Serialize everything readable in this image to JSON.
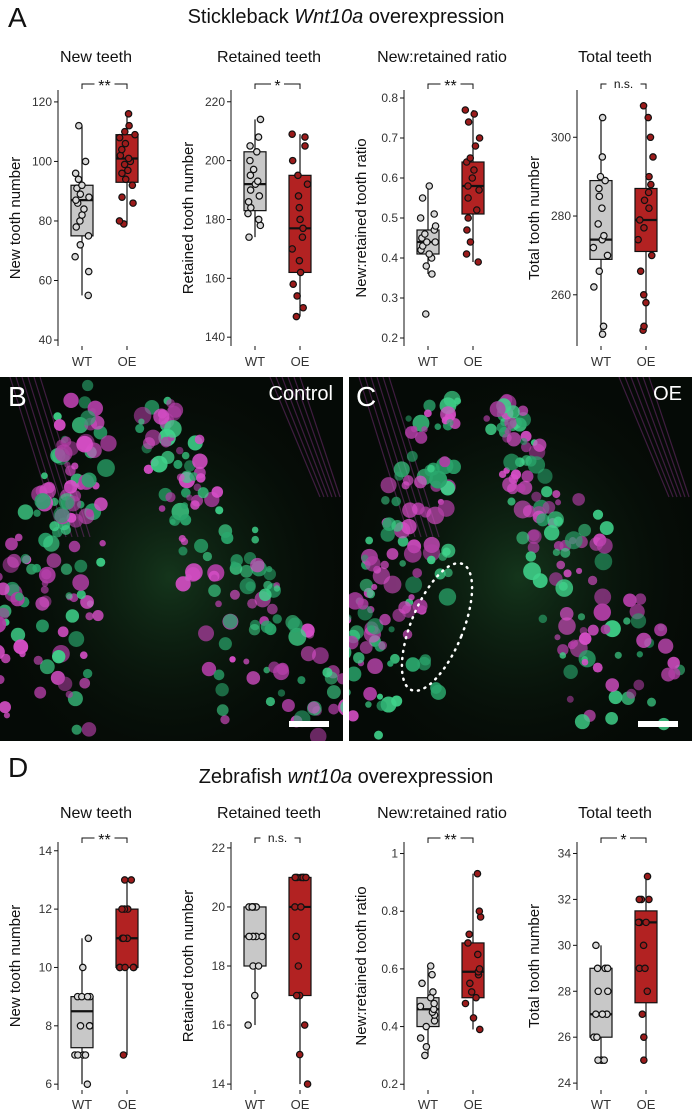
{
  "panel_A": {
    "letter": "A",
    "title_prefix": "Stickleback ",
    "title_italic": "Wnt10a",
    "title_suffix": " overexpression"
  },
  "panel_B": {
    "letter": "B",
    "label": "Control"
  },
  "panel_C": {
    "letter": "C",
    "label": "OE"
  },
  "panel_D": {
    "letter": "D",
    "title_prefix": "Zebrafish ",
    "title_italic": "wnt10a",
    "title_suffix": " overexpression"
  },
  "colors": {
    "wt_fill": "#c8c8c8",
    "oe_fill": "#b22222",
    "wt_point": "#d9d9d9",
    "oe_point": "#9b1b1b"
  },
  "chart_data": [
    {
      "id": "A1",
      "type": "box",
      "title": "New teeth",
      "ylabel": "New tooth number",
      "categories": [
        "WT",
        "OE"
      ],
      "ylim": [
        38,
        124
      ],
      "yticks": [
        40,
        60,
        80,
        100,
        120
      ],
      "signif": "**",
      "boxes": [
        {
          "q1": 75,
          "median": 87,
          "q3": 92,
          "min": 55,
          "max": 112
        },
        {
          "q1": 93,
          "median": 101,
          "q3": 109,
          "min": 79,
          "max": 116
        }
      ],
      "points": [
        [
          55,
          63,
          68,
          72,
          75,
          78,
          80,
          82,
          84,
          86,
          87,
          88,
          89,
          91,
          92,
          94,
          96,
          100,
          112
        ],
        [
          79,
          80,
          86,
          88,
          92,
          94,
          96,
          97,
          99,
          100,
          101,
          102,
          104,
          106,
          108,
          109,
          110,
          112,
          116
        ]
      ]
    },
    {
      "id": "A2",
      "type": "box",
      "title": "Retained teeth",
      "ylabel": "Retained tooth number",
      "categories": [
        "WT",
        "OE"
      ],
      "ylim": [
        137,
        224
      ],
      "yticks": [
        140,
        160,
        180,
        200,
        220
      ],
      "signif": "*",
      "boxes": [
        {
          "q1": 183,
          "median": 192,
          "q3": 203,
          "min": 174,
          "max": 214
        },
        {
          "q1": 162,
          "median": 177,
          "q3": 195,
          "min": 147,
          "max": 209
        }
      ],
      "points": [
        [
          174,
          178,
          180,
          182,
          184,
          186,
          188,
          190,
          192,
          193,
          195,
          197,
          200,
          203,
          205,
          208,
          214
        ],
        [
          147,
          150,
          154,
          158,
          162,
          166,
          170,
          174,
          177,
          180,
          184,
          188,
          192,
          195,
          200,
          205,
          208,
          209
        ]
      ]
    },
    {
      "id": "A3",
      "type": "box",
      "title": "New:retained ratio",
      "ylabel": "New:retained tooth ratio",
      "categories": [
        "WT",
        "OE"
      ],
      "ylim": [
        0.18,
        0.82
      ],
      "yticks": [
        0.2,
        0.3,
        0.4,
        0.5,
        0.6,
        0.7,
        0.8
      ],
      "signif": "**",
      "boxes": [
        {
          "q1": 0.41,
          "median": 0.44,
          "q3": 0.47,
          "min": 0.36,
          "max": 0.58
        },
        {
          "q1": 0.51,
          "median": 0.58,
          "q3": 0.64,
          "min": 0.39,
          "max": 0.77
        }
      ],
      "points": [
        [
          0.26,
          0.36,
          0.38,
          0.4,
          0.41,
          0.42,
          0.43,
          0.44,
          0.44,
          0.45,
          0.46,
          0.47,
          0.48,
          0.5,
          0.51,
          0.55,
          0.58
        ],
        [
          0.39,
          0.41,
          0.44,
          0.47,
          0.5,
          0.52,
          0.55,
          0.57,
          0.58,
          0.6,
          0.62,
          0.64,
          0.65,
          0.68,
          0.7,
          0.74,
          0.76,
          0.77
        ]
      ]
    },
    {
      "id": "A4",
      "type": "box",
      "title": "Total teeth",
      "ylabel": "Total tooth number",
      "categories": [
        "WT",
        "OE"
      ],
      "ylim": [
        247,
        312
      ],
      "yticks": [
        260,
        280,
        300
      ],
      "signif": "n.s.",
      "boxes": [
        {
          "q1": 269,
          "median": 274,
          "q3": 289,
          "min": 250,
          "max": 305
        },
        {
          "q1": 271,
          "median": 279,
          "q3": 287,
          "min": 251,
          "max": 308
        }
      ],
      "points": [
        [
          250,
          252,
          262,
          266,
          270,
          272,
          274,
          275,
          278,
          282,
          285,
          287,
          289,
          290,
          295,
          305
        ],
        [
          251,
          252,
          258,
          260,
          266,
          270,
          274,
          277,
          279,
          282,
          284,
          286,
          288,
          290,
          295,
          300,
          305,
          308
        ]
      ]
    },
    {
      "id": "D1",
      "type": "box",
      "title": "New teeth",
      "ylabel": "New tooth number",
      "categories": [
        "WT",
        "OE"
      ],
      "ylim": [
        5.8,
        14.3
      ],
      "yticks": [
        6,
        8,
        10,
        12,
        14
      ],
      "signif": "**",
      "boxes": [
        {
          "q1": 7.25,
          "median": 8.5,
          "q3": 9,
          "min": 6,
          "max": 11
        },
        {
          "q1": 10,
          "median": 11,
          "q3": 12,
          "min": 7,
          "max": 13
        }
      ],
      "points": [
        [
          6,
          7,
          7,
          7,
          7,
          8,
          8,
          8,
          9,
          9,
          9,
          9,
          10,
          11
        ],
        [
          7,
          10,
          10,
          10,
          10,
          10,
          11,
          11,
          11,
          12,
          12,
          12,
          13,
          13
        ]
      ]
    },
    {
      "id": "D2",
      "type": "box",
      "title": "Retained teeth",
      "ylabel": "Retained tooth number",
      "categories": [
        "WT",
        "OE"
      ],
      "ylim": [
        13.8,
        22.2
      ],
      "yticks": [
        14,
        16,
        18,
        20,
        22
      ],
      "signif": "n.s.",
      "boxes": [
        {
          "q1": 18,
          "median": 19,
          "q3": 20,
          "min": 16,
          "max": 20
        },
        {
          "q1": 17,
          "median": 20,
          "q3": 21,
          "min": 14,
          "max": 21
        }
      ],
      "points": [
        [
          16,
          17,
          18,
          18,
          19,
          19,
          19,
          19,
          20,
          20,
          20,
          20,
          20,
          20
        ],
        [
          14,
          15,
          16,
          17,
          17,
          18,
          19,
          20,
          20,
          21,
          21,
          21,
          21,
          21,
          21
        ]
      ]
    },
    {
      "id": "D3",
      "type": "box",
      "title": "New:retained ratio",
      "ylabel": "New:retained tooth ratio",
      "categories": [
        "WT",
        "OE"
      ],
      "ylim": [
        0.18,
        1.04
      ],
      "yticks": [
        0.2,
        0.4,
        0.6,
        0.8,
        1.0
      ],
      "signif": "**",
      "boxes": [
        {
          "q1": 0.4,
          "median": 0.46,
          "q3": 0.5,
          "min": 0.3,
          "max": 0.61
        },
        {
          "q1": 0.5,
          "median": 0.59,
          "q3": 0.69,
          "min": 0.39,
          "max": 0.93
        }
      ],
      "points": [
        [
          0.3,
          0.33,
          0.36,
          0.4,
          0.42,
          0.44,
          0.45,
          0.46,
          0.47,
          0.48,
          0.5,
          0.52,
          0.55,
          0.58,
          0.61
        ],
        [
          0.39,
          0.43,
          0.48,
          0.5,
          0.52,
          0.55,
          0.58,
          0.59,
          0.6,
          0.65,
          0.69,
          0.72,
          0.78,
          0.8,
          0.93
        ]
      ]
    },
    {
      "id": "D4",
      "type": "box",
      "title": "Total teeth",
      "ylabel": "Total tooth number",
      "categories": [
        "WT",
        "OE"
      ],
      "ylim": [
        23.7,
        34.5
      ],
      "yticks": [
        24,
        26,
        28,
        30,
        32,
        34
      ],
      "signif": "*",
      "boxes": [
        {
          "q1": 26,
          "median": 27,
          "q3": 29,
          "min": 25,
          "max": 30
        },
        {
          "q1": 27.5,
          "median": 31,
          "q3": 31.5,
          "min": 25,
          "max": 33
        }
      ],
      "points": [
        [
          25,
          25,
          25,
          26,
          26,
          27,
          27,
          27,
          28,
          28,
          29,
          29,
          29,
          30
        ],
        [
          25,
          26,
          27,
          28,
          29,
          29,
          30,
          31,
          31,
          31,
          31,
          32,
          32,
          32,
          33
        ]
      ]
    }
  ]
}
